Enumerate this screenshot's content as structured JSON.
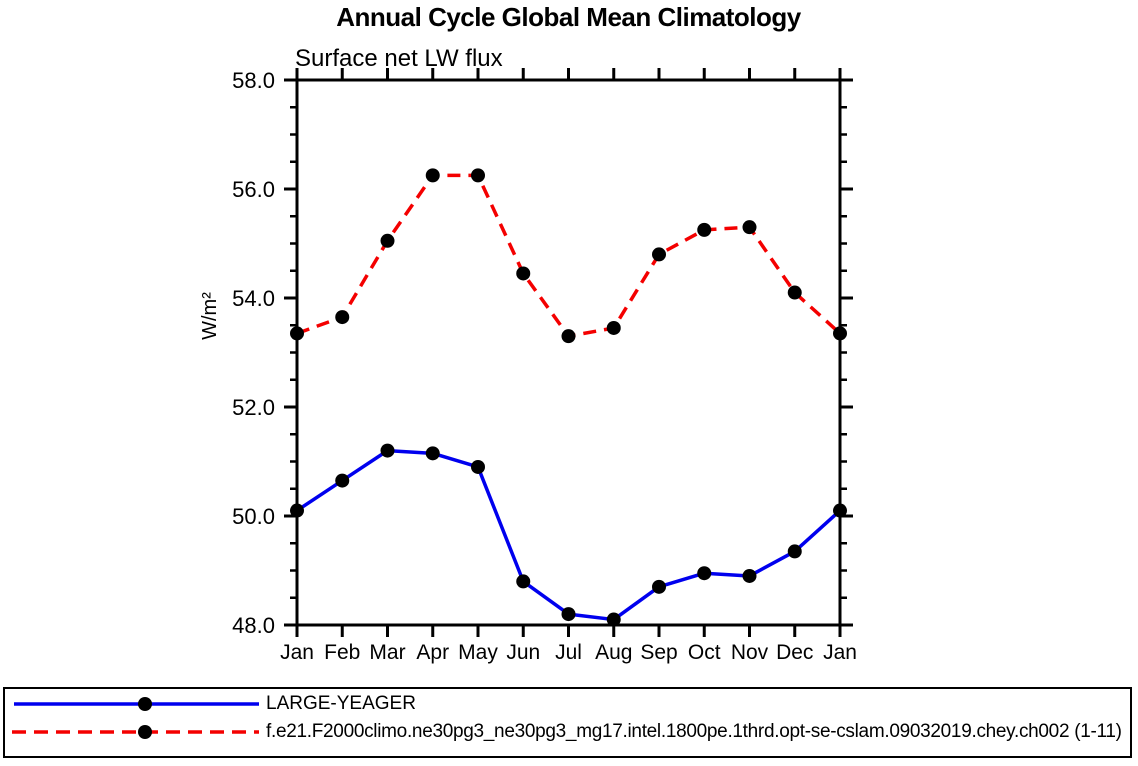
{
  "chart_data": {
    "type": "line",
    "title": "Annual Cycle Global Mean Climatology",
    "subtitle": "Surface net LW flux",
    "ylabel": "W/m²",
    "xlabel": "",
    "categories": [
      "Jan",
      "Feb",
      "Mar",
      "Apr",
      "May",
      "Jun",
      "Jul",
      "Aug",
      "Sep",
      "Oct",
      "Nov",
      "Dec",
      "Jan"
    ],
    "series": [
      {
        "name": "LARGE-YEAGER",
        "color": "#0000EE",
        "style": "solid",
        "marker": "filled-circle",
        "marker_color": "#000000",
        "values": [
          50.1,
          50.65,
          51.2,
          51.15,
          50.9,
          48.8,
          48.2,
          48.1,
          48.7,
          48.95,
          48.9,
          49.35,
          50.1
        ]
      },
      {
        "name": "f.e21.F2000climo.ne30pg3_ne30pg3_mg17.intel.1800pe.1thrd.opt-se-cslam.09032019.chey.ch002 (1-11)",
        "color": "#F40000",
        "style": "dashed",
        "marker": "filled-circle",
        "marker_color": "#000000",
        "values": [
          53.35,
          53.65,
          55.05,
          56.25,
          56.25,
          54.45,
          53.3,
          53.45,
          54.8,
          55.25,
          55.3,
          54.1,
          53.35
        ]
      }
    ],
    "ylim": [
      48,
      58
    ],
    "yticks": [
      48,
      50,
      52,
      54,
      56,
      58
    ],
    "ytick_minor_step": 0.5,
    "ytick_label_format": "one_decimal",
    "grid": false,
    "axis_color": "#000000",
    "legend_position": "bottom-box"
  }
}
